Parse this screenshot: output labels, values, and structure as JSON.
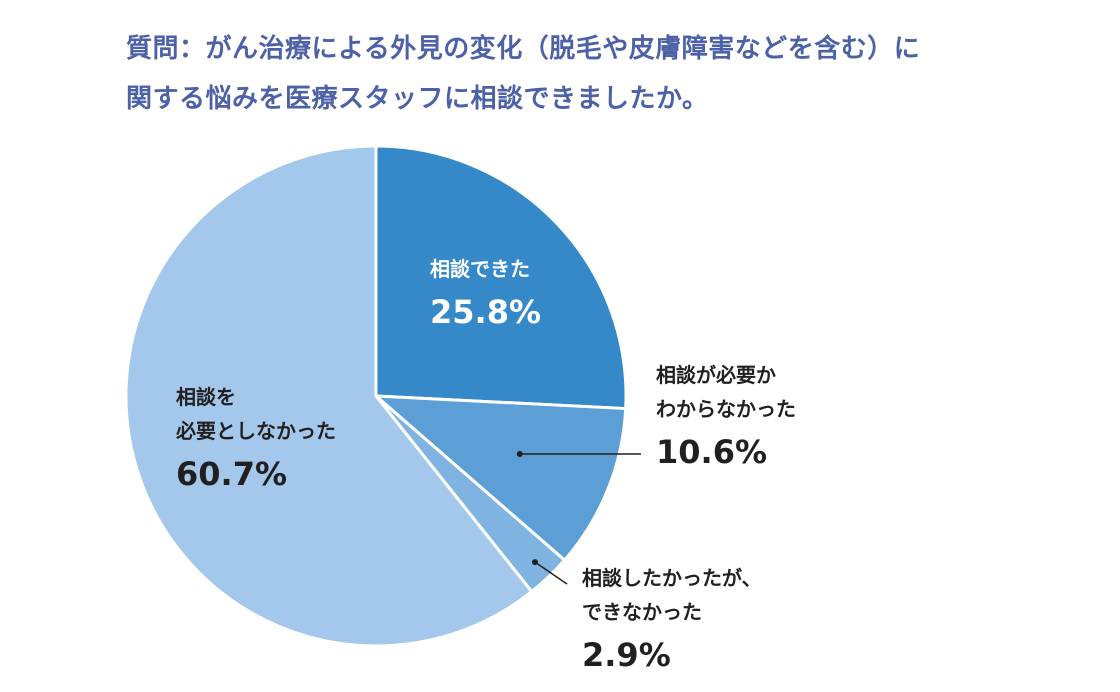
{
  "chart_data": {
    "type": "pie",
    "title_lines": [
      "質問：がん治療による外見の変化（脱毛や皮膚障害などを含む）に",
      "関する悩みを医療スタッフに相談できましたか。"
    ],
    "slices": [
      {
        "label_lines": [
          "相談できた"
        ],
        "value": 25.8,
        "display": "25.8%",
        "color": "#3589c9"
      },
      {
        "label_lines": [
          "相談が必要か",
          "わからなかった"
        ],
        "value": 10.6,
        "display": "10.6%",
        "color": "#5b9fd6"
      },
      {
        "label_lines": [
          "相談したかったが、",
          "できなかった"
        ],
        "value": 2.9,
        "display": "2.9%",
        "color": "#7fb4e2"
      },
      {
        "label_lines": [
          "相談を",
          "必要としなかった"
        ],
        "value": 60.7,
        "display": "60.7%",
        "color": "#a3c8eb"
      }
    ],
    "start": "top",
    "direction": "clockwise"
  }
}
